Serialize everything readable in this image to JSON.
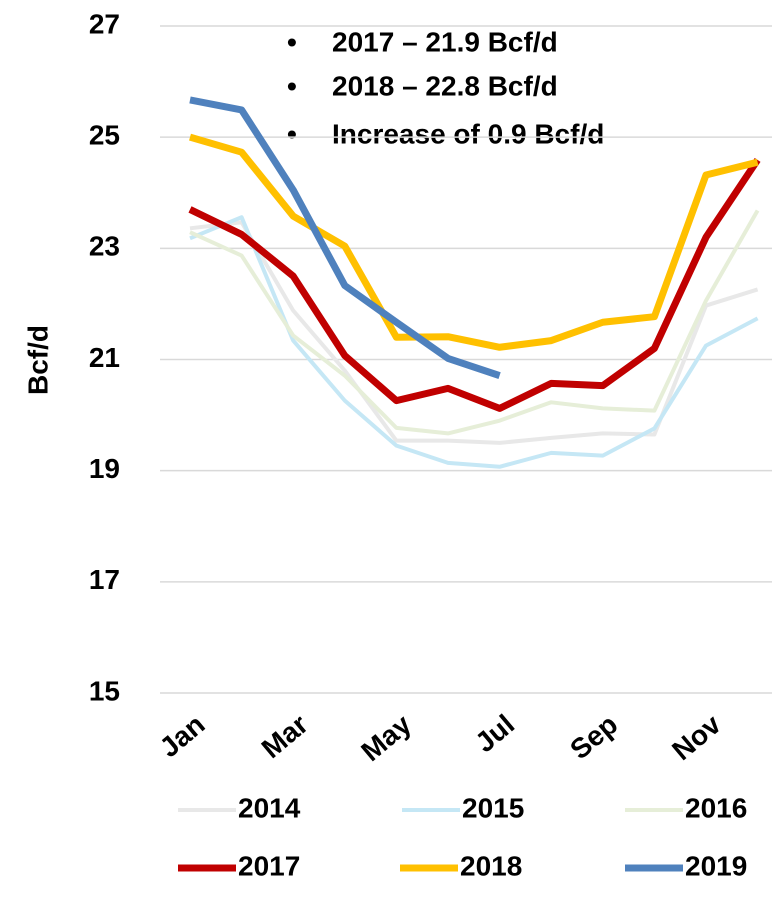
{
  "chart_data": {
    "type": "line",
    "y_label": "Bcf/d",
    "annotations": [
      "2017 – 21.9 Bcf/d",
      "2018 – 22.8 Bcf/d",
      "Increase of 0.9 Bcf/d"
    ],
    "categories": [
      "Jan",
      null,
      "Mar",
      null,
      "May",
      null,
      "Jul",
      null,
      "Sep",
      null,
      "Nov",
      null
    ],
    "ylim": [
      15,
      27
    ],
    "yticks": [
      15,
      17,
      19,
      21,
      23,
      25,
      27
    ],
    "grid": true,
    "series": [
      {
        "name": "2014",
        "color": "#e8e8e8",
        "values": [
          23.36,
          23.47,
          21.88,
          20.8,
          19.54,
          19.54,
          19.5,
          19.59,
          19.67,
          19.65,
          21.97,
          22.26
        ]
      },
      {
        "name": "2015",
        "color": "#c5e7f5",
        "values": [
          23.18,
          23.56,
          21.34,
          20.26,
          19.45,
          19.14,
          19.07,
          19.32,
          19.27,
          19.76,
          21.25,
          21.74
        ]
      },
      {
        "name": "2016",
        "color": "#e6eed8",
        "values": [
          23.29,
          22.87,
          21.43,
          20.71,
          19.77,
          19.67,
          19.9,
          20.23,
          20.12,
          20.08,
          22.06,
          23.68
        ]
      },
      {
        "name": "2017",
        "color": "#c00000",
        "values": [
          23.7,
          23.25,
          22.5,
          21.07,
          20.26,
          20.48,
          20.12,
          20.57,
          20.53,
          21.2,
          23.2,
          24.59
        ]
      },
      {
        "name": "2018",
        "color": "#ffc000",
        "values": [
          25.0,
          24.73,
          23.58,
          23.04,
          21.4,
          21.41,
          21.22,
          21.34,
          21.67,
          21.77,
          24.32,
          24.55
        ]
      },
      {
        "name": "2019",
        "color": "#4f81bd",
        "values": [
          25.67,
          25.49,
          24.05,
          22.33,
          21.67,
          21.02,
          20.71,
          null,
          null,
          null,
          null,
          null
        ]
      }
    ]
  }
}
